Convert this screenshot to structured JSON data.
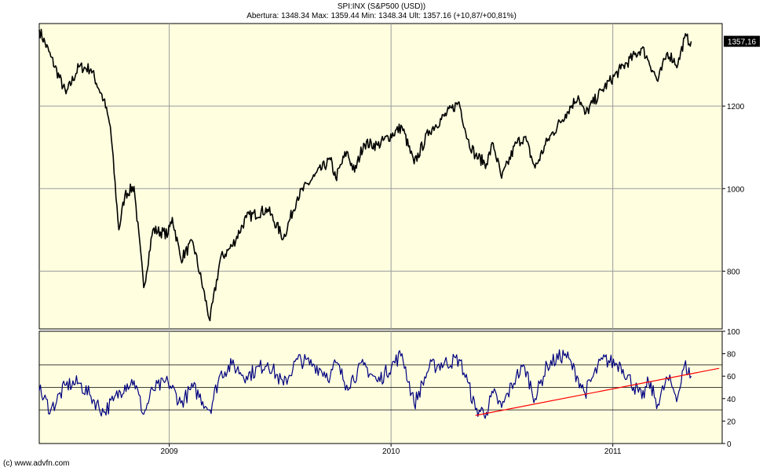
{
  "header": {
    "symbol_line": "SPI:INX (S&P500 (USD))",
    "quote_line": "Abertura: 1348.34 Max: 1359.44 Min: 1348.34 Ult: 1357.16 (+10,87/+00,81%)"
  },
  "footer": {
    "credit": "(c) www.advfn.com"
  },
  "colors": {
    "background": "#ffffe0",
    "price_line": "#000000",
    "rsi_line": "#000080",
    "trendline": "#ff0000",
    "last_price_box": "#000000"
  },
  "chart_data": [
    {
      "type": "line",
      "title": "SPI:INX (S&P500 (USD))",
      "x_range": [
        "2008-06-01",
        "2011-06-30"
      ],
      "x_ticks": [
        "2009",
        "2010",
        "2011"
      ],
      "ylim": [
        660,
        1400
      ],
      "y_ticks": [
        "800",
        "1000",
        "1200"
      ],
      "last_price_label": "1357,16",
      "grid": true,
      "series": [
        {
          "x": [
            "2008-06-01",
            "2008-06-20",
            "2008-07-15",
            "2008-08-05",
            "2008-08-25",
            "2008-09-15",
            "2008-09-26",
            "2008-10-10",
            "2008-10-20",
            "2008-11-04",
            "2008-11-20",
            "2008-12-05",
            "2008-12-30",
            "2009-01-06",
            "2009-01-20",
            "2009-02-09",
            "2009-03-09",
            "2009-03-26",
            "2009-04-14",
            "2009-05-08",
            "2009-06-12",
            "2009-07-08",
            "2009-07-31",
            "2009-08-28",
            "2009-09-23",
            "2009-10-02",
            "2009-10-20",
            "2009-11-02",
            "2009-11-17",
            "2009-12-10",
            "2010-01-19",
            "2010-02-08",
            "2010-03-05",
            "2010-04-23",
            "2010-05-07",
            "2010-05-20",
            "2010-06-07",
            "2010-06-18",
            "2010-07-02",
            "2010-07-26",
            "2010-08-09",
            "2010-08-26",
            "2010-09-15",
            "2010-10-15",
            "2010-11-05",
            "2010-11-16",
            "2010-12-15",
            "2011-01-14",
            "2011-02-18",
            "2011-03-01",
            "2011-03-16",
            "2011-04-01",
            "2011-04-18",
            "2011-04-29",
            "2011-05-10"
          ],
          "y": [
            1385,
            1320,
            1230,
            1295,
            1290,
            1215,
            1150,
            900,
            985,
            1005,
            760,
            900,
            890,
            930,
            830,
            870,
            680,
            830,
            860,
            930,
            950,
            880,
            980,
            1030,
            1070,
            1025,
            1090,
            1040,
            1110,
            1105,
            1150,
            1060,
            1140,
            1210,
            1120,
            1080,
            1060,
            1110,
            1025,
            1110,
            1125,
            1050,
            1115,
            1180,
            1225,
            1180,
            1240,
            1290,
            1340,
            1310,
            1260,
            1330,
            1300,
            1365,
            1357
          ]
        }
      ]
    },
    {
      "type": "line",
      "title": "",
      "ylim": [
        0,
        100
      ],
      "y_ticks": [
        "0",
        "20",
        "40",
        "60",
        "80",
        "100"
      ],
      "reference_lines": [
        30,
        50,
        70
      ],
      "series": [
        {
          "x": [
            "2008-06-01",
            "2008-06-20",
            "2008-07-15",
            "2008-08-05",
            "2008-08-25",
            "2008-09-15",
            "2008-10-01",
            "2008-10-20",
            "2008-11-04",
            "2008-11-20",
            "2008-12-05",
            "2008-12-30",
            "2009-01-20",
            "2009-02-09",
            "2009-03-09",
            "2009-03-26",
            "2009-04-14",
            "2009-05-08",
            "2009-06-12",
            "2009-07-08",
            "2009-07-31",
            "2009-08-28",
            "2009-09-23",
            "2009-10-02",
            "2009-10-20",
            "2009-11-17",
            "2009-12-10",
            "2010-01-19",
            "2010-02-08",
            "2010-03-05",
            "2010-04-23",
            "2010-05-07",
            "2010-05-20",
            "2010-06-07",
            "2010-06-18",
            "2010-07-02",
            "2010-07-26",
            "2010-08-09",
            "2010-08-26",
            "2010-09-15",
            "2010-10-15",
            "2010-11-05",
            "2010-11-16",
            "2010-12-15",
            "2011-01-14",
            "2011-02-18",
            "2011-03-01",
            "2011-03-16",
            "2011-04-01",
            "2011-04-18",
            "2011-04-29",
            "2011-05-10"
          ],
          "y": [
            47,
            30,
            52,
            54,
            42,
            28,
            38,
            52,
            56,
            26,
            48,
            55,
            36,
            50,
            30,
            62,
            70,
            60,
            72,
            52,
            75,
            70,
            60,
            72,
            52,
            70,
            55,
            80,
            35,
            68,
            75,
            55,
            30,
            28,
            45,
            32,
            60,
            68,
            40,
            70,
            80,
            58,
            45,
            75,
            70,
            40,
            55,
            35,
            58,
            42,
            70,
            60
          ]
        },
        {
          "name": "",
          "x": [
            "2010-05-20",
            "2011-06-25"
          ],
          "y": [
            25,
            67
          ]
        }
      ]
    }
  ]
}
